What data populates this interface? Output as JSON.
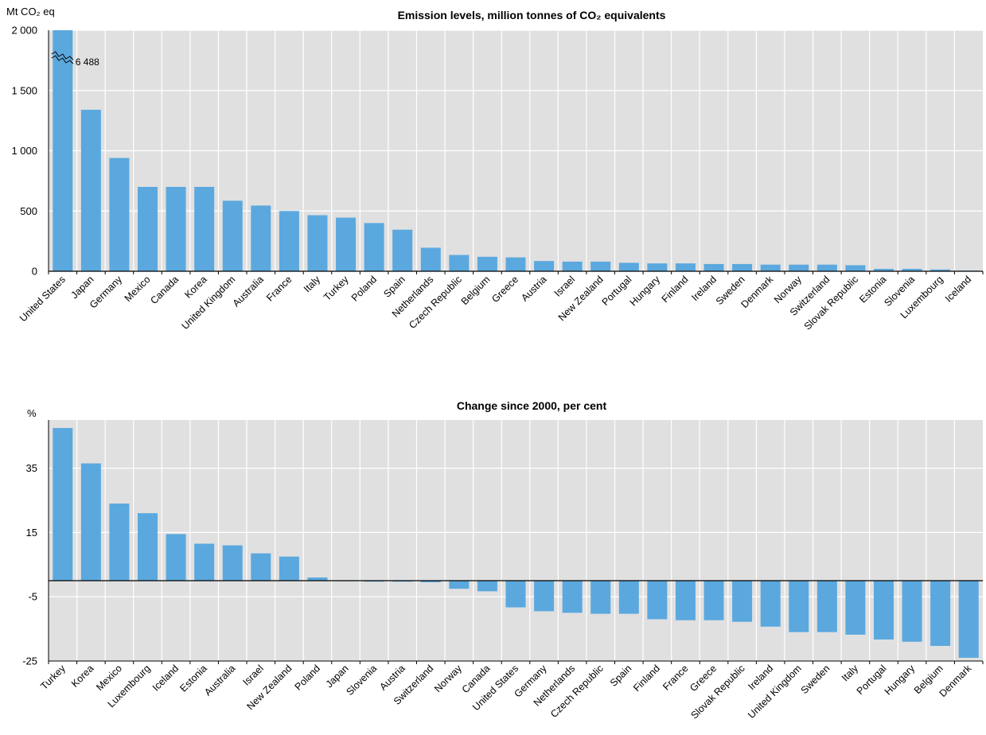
{
  "chart_data": [
    {
      "type": "bar",
      "title": "Emission levels, million tonnes of CO₂ equivalents",
      "ylabel": "Mt CO₂ eq",
      "ylim": [
        0,
        2000
      ],
      "yticks": [
        0,
        500,
        1000,
        1500,
        2000
      ],
      "ytick_labels": [
        "0",
        "500",
        "1 000",
        "1 500",
        "2 000"
      ],
      "grid": true,
      "axis_break": {
        "category": "United States",
        "value": 6488,
        "label": "6 488"
      },
      "categories": [
        "United States",
        "Japan",
        "Germany",
        "Mexico",
        "Canada",
        "Korea",
        "United Kingdom",
        "Australia",
        "France",
        "Italy",
        "Turkey",
        "Poland",
        "Spain",
        "Netherlands",
        "Czech Republic",
        "Belgium",
        "Greece",
        "Austria",
        "Israel",
        "New Zealand",
        "Portugal",
        "Hungary",
        "Finland",
        "Ireland",
        "Sweden",
        "Denmark",
        "Norway",
        "Switzerland",
        "Slovak Republic",
        "Estonia",
        "Slovenia",
        "Luxembourg",
        "Iceland"
      ],
      "values": [
        6488,
        1340,
        940,
        700,
        700,
        700,
        585,
        545,
        500,
        465,
        445,
        400,
        345,
        195,
        135,
        120,
        115,
        85,
        80,
        80,
        70,
        65,
        65,
        60,
        60,
        55,
        55,
        55,
        50,
        20,
        20,
        15,
        5
      ],
      "color": "#5BA8DE"
    },
    {
      "type": "bar",
      "title": "Change since 2000, per cent",
      "ylabel": "%",
      "ylim": [
        -25,
        50
      ],
      "yticks": [
        -25,
        -5,
        15,
        35
      ],
      "ytick_labels": [
        "-25",
        "-5",
        "15",
        "35"
      ],
      "grid": true,
      "categories": [
        "Turkey",
        "Korea",
        "Mexico",
        "Luxembourg",
        "Iceland",
        "Estonia",
        "Australia",
        "Israel",
        "New Zealand",
        "Poland",
        "Japan",
        "Slovenia",
        "Austria",
        "Switzerland",
        "Norway",
        "Canada",
        "United States",
        "Germany",
        "Netherlands",
        "Czech Republic",
        "Spain",
        "Finland",
        "France",
        "Greece",
        "Slovak Republic",
        "Ireland",
        "United Kingdom",
        "Sweden",
        "Italy",
        "Portugal",
        "Hungary",
        "Belgium",
        "Denmark"
      ],
      "values": [
        47.5,
        36.5,
        24,
        21,
        14.5,
        11.5,
        11,
        8.5,
        7.5,
        1,
        0,
        -0.3,
        -0.3,
        -0.5,
        -2.5,
        -3.3,
        -8.3,
        -9.5,
        -10,
        -10.3,
        -10.3,
        -12,
        -12.3,
        -12.3,
        -12.8,
        -14.3,
        -16,
        -16,
        -16.8,
        -18.3,
        -19,
        -20.3,
        -24
      ]
    }
  ]
}
